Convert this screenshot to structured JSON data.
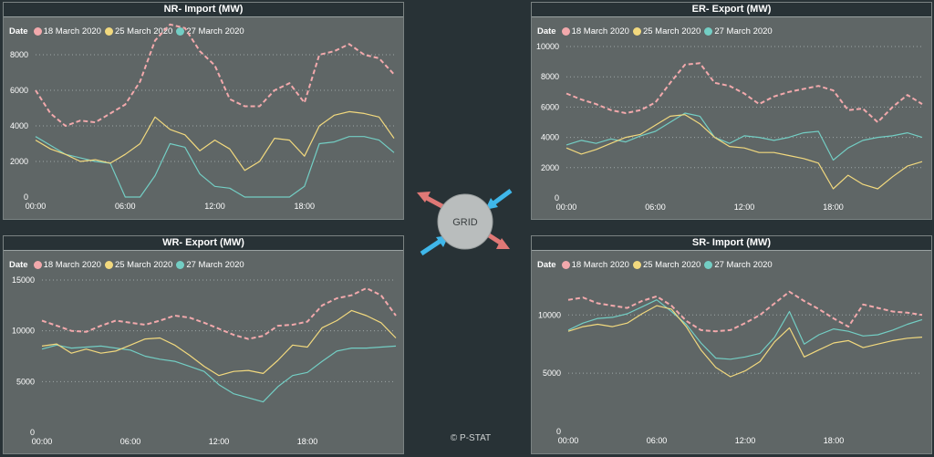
{
  "legend_title": "Date",
  "series_names": [
    "18 March 2020",
    "25 March 2020",
    "27 March 2020"
  ],
  "series_colors": [
    "#f2a9ac",
    "#f2d97e",
    "#73cec4"
  ],
  "grid_label": "GRID",
  "copyright": "© P-STAT",
  "chart_data": [
    {
      "type": "line",
      "title": "NR- Import (MW)",
      "x_ticks": [
        "00:00",
        "06:00",
        "12:00",
        "18:00"
      ],
      "y_ticks": [
        0,
        2000,
        4000,
        6000,
        8000
      ],
      "ylim": [
        0,
        10000
      ],
      "x_hours": [
        0,
        1,
        2,
        3,
        4,
        5,
        6,
        7,
        8,
        9,
        10,
        11,
        12,
        13,
        14,
        15,
        16,
        17,
        18,
        19,
        20,
        21,
        22,
        23,
        24
      ],
      "series": [
        {
          "name": "18 March 2020",
          "values": [
            6000,
            4700,
            4000,
            4300,
            4200,
            4700,
            5200,
            6500,
            8800,
            9700,
            9500,
            8200,
            7400,
            5500,
            5100,
            5100,
            6000,
            6400,
            5300,
            8000,
            8200,
            8600,
            8000,
            7800,
            6900
          ]
        },
        {
          "name": "25 March 2020",
          "values": [
            3200,
            2700,
            2400,
            2000,
            2100,
            1900,
            2400,
            3000,
            4500,
            3800,
            3500,
            2600,
            3200,
            2700,
            1500,
            2000,
            3300,
            3200,
            2300,
            4000,
            4600,
            4800,
            4700,
            4500,
            3300
          ]
        },
        {
          "name": "27 March 2020",
          "values": [
            3400,
            2900,
            2400,
            2200,
            2000,
            1900,
            0,
            0,
            1200,
            3000,
            2800,
            1300,
            600,
            500,
            0,
            0,
            0,
            0,
            600,
            3000,
            3100,
            3400,
            3400,
            3200,
            2500
          ]
        }
      ]
    },
    {
      "type": "line",
      "title": "ER- Export (MW)",
      "x_ticks": [
        "00:00",
        "06:00",
        "12:00",
        "18:00"
      ],
      "y_ticks": [
        0,
        2000,
        4000,
        6000,
        8000,
        10000
      ],
      "ylim": [
        0,
        10000
      ],
      "x_hours": [
        0,
        1,
        2,
        3,
        4,
        5,
        6,
        7,
        8,
        9,
        10,
        11,
        12,
        13,
        14,
        15,
        16,
        17,
        18,
        19,
        20,
        21,
        22,
        23,
        24
      ],
      "series": [
        {
          "name": "18 March 2020",
          "values": [
            6900,
            6500,
            6200,
            5800,
            5600,
            5800,
            6300,
            7600,
            8800,
            8900,
            7600,
            7400,
            6900,
            6200,
            6700,
            7000,
            7200,
            7400,
            7100,
            5800,
            5900,
            5000,
            6000,
            6800,
            6200
          ]
        },
        {
          "name": "25 March 2020",
          "values": [
            3300,
            2900,
            3200,
            3600,
            4000,
            4200,
            4800,
            5400,
            5500,
            4900,
            4000,
            3400,
            3300,
            3000,
            3000,
            2800,
            2600,
            2300,
            600,
            1500,
            900,
            600,
            1400,
            2100,
            2400
          ]
        },
        {
          "name": "27 March 2020",
          "values": [
            3500,
            3800,
            3600,
            3900,
            3700,
            4100,
            4400,
            5000,
            5600,
            5400,
            4000,
            3600,
            4100,
            4000,
            3800,
            4000,
            4300,
            4400,
            2500,
            3300,
            3800,
            4000,
            4100,
            4300,
            4000
          ]
        }
      ]
    },
    {
      "type": "line",
      "title": "WR- Export (MW)",
      "x_ticks": [
        "00:00",
        "06:00",
        "12:00",
        "18:00"
      ],
      "y_ticks": [
        0,
        5000,
        10000,
        15000
      ],
      "ylim": [
        0,
        15000
      ],
      "x_hours": [
        0,
        1,
        2,
        3,
        4,
        5,
        6,
        7,
        8,
        9,
        10,
        11,
        12,
        13,
        14,
        15,
        16,
        17,
        18,
        19,
        20,
        21,
        22,
        23,
        24
      ],
      "series": [
        {
          "name": "18 March 2020",
          "values": [
            11000,
            10500,
            10000,
            9900,
            10500,
            11000,
            10800,
            10600,
            11000,
            11500,
            11300,
            10800,
            10200,
            9600,
            9200,
            9500,
            10500,
            10600,
            10900,
            12500,
            13200,
            13500,
            14200,
            13500,
            11500
          ]
        },
        {
          "name": "25 March 2020",
          "values": [
            8500,
            8700,
            7800,
            8200,
            7800,
            8000,
            8600,
            9200,
            9300,
            8600,
            7600,
            6500,
            5600,
            6000,
            6100,
            5800,
            7100,
            8600,
            8400,
            10300,
            11000,
            12000,
            11500,
            10800,
            9300
          ]
        },
        {
          "name": "27 March 2020",
          "values": [
            8200,
            8600,
            8300,
            8400,
            8500,
            8300,
            8100,
            7500,
            7200,
            7000,
            6500,
            6000,
            4700,
            3800,
            3400,
            3000,
            4500,
            5600,
            5900,
            7000,
            8000,
            8300,
            8300,
            8400,
            8500
          ]
        }
      ]
    },
    {
      "type": "line",
      "title": "SR- Import (MW)",
      "x_ticks": [
        "00:00",
        "06:00",
        "12:00",
        "18:00"
      ],
      "y_ticks": [
        0,
        5000,
        10000
      ],
      "ylim": [
        0,
        13000
      ],
      "x_hours": [
        0,
        1,
        2,
        3,
        4,
        5,
        6,
        7,
        8,
        9,
        10,
        11,
        12,
        13,
        14,
        15,
        16,
        17,
        18,
        19,
        20,
        21,
        22,
        23,
        24
      ],
      "series": [
        {
          "name": "18 March 2020",
          "values": [
            11300,
            11500,
            11000,
            10800,
            10600,
            11200,
            11600,
            10800,
            9500,
            8700,
            8600,
            8700,
            9300,
            10000,
            11000,
            12000,
            11200,
            10500,
            9700,
            9000,
            10900,
            10600,
            10300,
            10200,
            10000
          ]
        },
        {
          "name": "25 March 2020",
          "values": [
            8600,
            9000,
            9200,
            9000,
            9300,
            10100,
            10800,
            10500,
            9000,
            7000,
            5500,
            4700,
            5200,
            6000,
            7700,
            8900,
            6400,
            7000,
            7600,
            7800,
            7200,
            7500,
            7800,
            8000,
            8100
          ]
        },
        {
          "name": "27 March 2020",
          "values": [
            8700,
            9300,
            9700,
            9800,
            10100,
            10700,
            11300,
            10300,
            9200,
            7600,
            6300,
            6200,
            6400,
            6700,
            8100,
            10300,
            7500,
            8300,
            8800,
            8600,
            8200,
            8300,
            8700,
            9200,
            9600
          ]
        }
      ]
    }
  ]
}
